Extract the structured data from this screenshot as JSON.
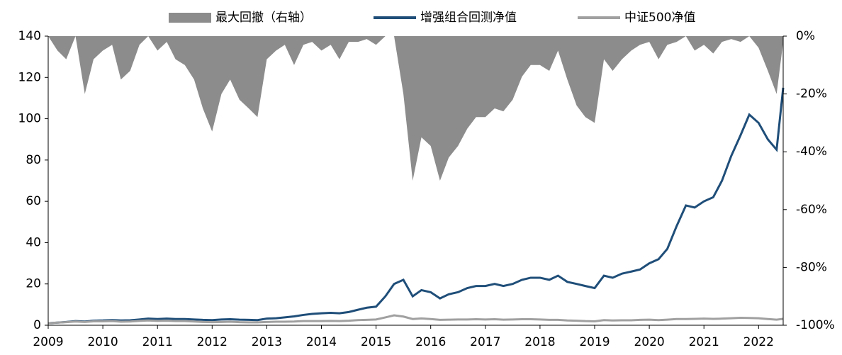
{
  "chart_data": {
    "type": "line",
    "x": [
      2009.0,
      2009.17,
      2009.33,
      2009.5,
      2009.67,
      2009.83,
      2010.0,
      2010.17,
      2010.33,
      2010.5,
      2010.67,
      2010.83,
      2011.0,
      2011.17,
      2011.33,
      2011.5,
      2011.67,
      2011.83,
      2012.0,
      2012.17,
      2012.33,
      2012.5,
      2012.67,
      2012.83,
      2013.0,
      2013.17,
      2013.33,
      2013.5,
      2013.67,
      2013.83,
      2014.0,
      2014.17,
      2014.33,
      2014.5,
      2014.67,
      2014.83,
      2015.0,
      2015.17,
      2015.33,
      2015.5,
      2015.67,
      2015.83,
      2016.0,
      2016.17,
      2016.33,
      2016.5,
      2016.67,
      2016.83,
      2017.0,
      2017.17,
      2017.33,
      2017.5,
      2017.67,
      2017.83,
      2018.0,
      2018.17,
      2018.33,
      2018.5,
      2018.67,
      2018.83,
      2019.0,
      2019.17,
      2019.33,
      2019.5,
      2019.67,
      2019.83,
      2020.0,
      2020.17,
      2020.33,
      2020.5,
      2020.67,
      2020.83,
      2021.0,
      2021.17,
      2021.33,
      2021.5,
      2021.67,
      2021.83,
      2022.0,
      2022.17,
      2022.33,
      2022.45
    ],
    "series": [
      {
        "name": "最大回撤（右轴）",
        "type": "area",
        "axis": "y2",
        "color": "#8c8c8c",
        "values": [
          0,
          -5,
          -8,
          0,
          -20,
          -8,
          -5,
          -3,
          -15,
          -12,
          -3,
          0,
          -5,
          -2,
          -8,
          -10,
          -15,
          -25,
          -33,
          -20,
          -15,
          -22,
          -25,
          -28,
          -8,
          -5,
          -3,
          -10,
          -3,
          -2,
          -5,
          -3,
          -8,
          -2,
          -2,
          -1,
          -3,
          0,
          0,
          -20,
          -50,
          -35,
          -38,
          -50,
          -42,
          -38,
          -32,
          -28,
          -28,
          -25,
          -26,
          -22,
          -14,
          -10,
          -10,
          -12,
          -5,
          -15,
          -24,
          -28,
          -30,
          -8,
          -12,
          -8,
          -5,
          -3,
          -2,
          -8,
          -3,
          -2,
          0,
          -5,
          -3,
          -6,
          -2,
          -1,
          -2,
          0,
          -4,
          -12,
          -20,
          -2
        ]
      },
      {
        "name": "增强组合回测净值",
        "type": "line",
        "color": "#1f4e79",
        "values": [
          1.0,
          1.3,
          1.6,
          2.0,
          1.8,
          2.2,
          2.3,
          2.5,
          2.3,
          2.4,
          2.8,
          3.2,
          3.0,
          3.2,
          3.0,
          3.0,
          2.8,
          2.6,
          2.5,
          2.8,
          2.9,
          2.7,
          2.6,
          2.5,
          3.2,
          3.4,
          3.8,
          4.3,
          5.0,
          5.5,
          5.8,
          6.0,
          5.8,
          6.4,
          7.5,
          8.5,
          9.0,
          14,
          20,
          22,
          14,
          17,
          16,
          13,
          15,
          16,
          18,
          19,
          19,
          20,
          19,
          20,
          22,
          23,
          23,
          22,
          24,
          21,
          20,
          19,
          18,
          24,
          23,
          25,
          26,
          27,
          30,
          32,
          37,
          48,
          58,
          57,
          60,
          62,
          70,
          82,
          92,
          102,
          98,
          90,
          85,
          115
        ]
      },
      {
        "name": "中证500净值",
        "type": "line",
        "color": "#a0a0a0",
        "values": [
          1.0,
          1.3,
          1.5,
          1.8,
          1.6,
          1.9,
          1.9,
          2.0,
          1.7,
          1.8,
          2.1,
          2.3,
          2.1,
          2.2,
          2.0,
          2.0,
          1.8,
          1.6,
          1.5,
          1.6,
          1.7,
          1.5,
          1.4,
          1.4,
          1.6,
          1.7,
          1.7,
          1.8,
          2.0,
          2.0,
          2.0,
          2.1,
          2.0,
          2.2,
          2.5,
          2.6,
          2.8,
          3.8,
          4.8,
          4.2,
          3.0,
          3.3,
          3.0,
          2.6,
          2.7,
          2.8,
          2.8,
          2.9,
          2.8,
          2.9,
          2.7,
          2.8,
          2.9,
          2.9,
          2.8,
          2.6,
          2.6,
          2.3,
          2.2,
          2.0,
          1.9,
          2.5,
          2.3,
          2.4,
          2.4,
          2.6,
          2.7,
          2.5,
          2.7,
          3.0,
          3.0,
          3.1,
          3.2,
          3.1,
          3.2,
          3.4,
          3.6,
          3.5,
          3.4,
          3.0,
          2.7,
          3.1
        ]
      }
    ],
    "xlim": [
      2009,
      2022.45
    ],
    "xticks": [
      2009,
      2010,
      2011,
      2012,
      2013,
      2014,
      2015,
      2016,
      2017,
      2018,
      2019,
      2020,
      2021,
      2022
    ],
    "ylim": [
      0,
      140
    ],
    "yticks": [
      0,
      20,
      40,
      60,
      80,
      100,
      120,
      140
    ],
    "y2lim": [
      -100,
      0
    ],
    "y2ticks": [
      {
        "value": 0,
        "label": "0%"
      },
      {
        "value": -20,
        "label": "-20%"
      },
      {
        "value": -40,
        "label": "-40%"
      },
      {
        "value": -60,
        "label": "-60%"
      },
      {
        "value": -80,
        "label": "-80%"
      },
      {
        "value": -100,
        "label": "-100%"
      }
    ],
    "legend": "top"
  }
}
